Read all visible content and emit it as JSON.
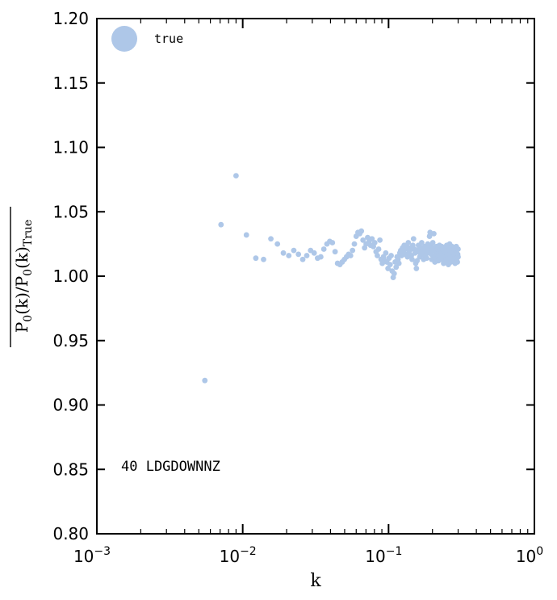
{
  "chart_data": {
    "type": "scatter",
    "x_scale": "log",
    "xlim": [
      0.001,
      1
    ],
    "ylim": [
      0.8,
      1.2
    ],
    "xlabel": "k",
    "ylabel": "P0(k) / P0(k)True",
    "x_ticks": [
      {
        "value": 0.001,
        "base": "10",
        "exp": "−3"
      },
      {
        "value": 0.01,
        "base": "10",
        "exp": "−2"
      },
      {
        "value": 0.1,
        "base": "10",
        "exp": "−1"
      },
      {
        "value": 1,
        "base": "10",
        "exp": "0"
      }
    ],
    "y_ticks": [
      {
        "value": 0.8,
        "label": "0.80"
      },
      {
        "value": 0.85,
        "label": "0.85"
      },
      {
        "value": 0.9,
        "label": "0.90"
      },
      {
        "value": 0.95,
        "label": "0.95"
      },
      {
        "value": 1.0,
        "label": "1.00"
      },
      {
        "value": 1.05,
        "label": "1.05"
      },
      {
        "value": 1.1,
        "label": "1.10"
      },
      {
        "value": 1.15,
        "label": "1.15"
      },
      {
        "value": 1.2,
        "label": "1.20"
      }
    ],
    "legend": {
      "position": "top-left",
      "entries": [
        {
          "label": "true",
          "color": "#aec7e8"
        }
      ]
    },
    "annotation": "40 LDGDOWNNZ",
    "grid": false,
    "series": [
      {
        "name": "true",
        "color": "#aec7e8",
        "points": [
          [
            0.0055,
            0.919
          ],
          [
            0.0071,
            1.04
          ],
          [
            0.009,
            1.078
          ],
          [
            0.0106,
            1.032
          ],
          [
            0.0123,
            1.014
          ],
          [
            0.0139,
            1.013
          ],
          [
            0.0156,
            1.029
          ],
          [
            0.0173,
            1.025
          ],
          [
            0.019,
            1.018
          ],
          [
            0.0207,
            1.016
          ],
          [
            0.0224,
            1.02
          ],
          [
            0.0241,
            1.017
          ],
          [
            0.0258,
            1.013
          ],
          [
            0.0275,
            1.016
          ],
          [
            0.0292,
            1.02
          ],
          [
            0.0309,
            1.018
          ],
          [
            0.0326,
            1.014
          ],
          [
            0.0343,
            1.015
          ],
          [
            0.036,
            1.021
          ],
          [
            0.0378,
            1.025
          ],
          [
            0.0395,
            1.027
          ],
          [
            0.0412,
            1.026
          ],
          [
            0.043,
            1.019
          ],
          [
            0.0447,
            1.01
          ],
          [
            0.0464,
            1.009
          ],
          [
            0.0481,
            1.011
          ],
          [
            0.0498,
            1.013
          ],
          [
            0.0515,
            1.015
          ],
          [
            0.0532,
            1.017
          ],
          [
            0.0549,
            1.016
          ],
          [
            0.0566,
            1.02
          ],
          [
            0.0583,
            1.025
          ],
          [
            0.06,
            1.031
          ],
          [
            0.0617,
            1.034
          ],
          [
            0.0634,
            1.033
          ],
          [
            0.0651,
            1.035
          ],
          [
            0.0668,
            1.028
          ],
          [
            0.0685,
            1.022
          ],
          [
            0.0702,
            1.025
          ],
          [
            0.0719,
            1.03
          ],
          [
            0.0736,
            1.027
          ],
          [
            0.0753,
            1.024
          ],
          [
            0.077,
            1.029
          ],
          [
            0.0787,
            1.023
          ],
          [
            0.0804,
            1.026
          ],
          [
            0.0821,
            1.019
          ],
          [
            0.0838,
            1.016
          ],
          [
            0.0855,
            1.021
          ],
          [
            0.0872,
            1.028
          ],
          [
            0.0889,
            1.013
          ],
          [
            0.0906,
            1.01
          ],
          [
            0.0923,
            1.015
          ],
          [
            0.094,
            1.012
          ],
          [
            0.0957,
            1.018
          ],
          [
            0.0974,
            1.011
          ],
          [
            0.0991,
            1.006
          ],
          [
            0.1008,
            1.014
          ],
          [
            0.1025,
            1.009
          ],
          [
            0.1042,
            1.016
          ],
          [
            0.1059,
            1.004
          ],
          [
            0.1076,
            0.999
          ],
          [
            0.1093,
            1.002
          ],
          [
            0.111,
            1.011
          ],
          [
            0.1127,
            1.007
          ],
          [
            0.1144,
            1.015
          ],
          [
            0.1161,
            1.013
          ],
          [
            0.1178,
            1.01
          ],
          [
            0.1195,
            1.018
          ],
          [
            0.1212,
            1.02
          ],
          [
            0.1229,
            1.016
          ],
          [
            0.1246,
            1.022
          ],
          [
            0.1263,
            1.019
          ],
          [
            0.128,
            1.024
          ],
          [
            0.1297,
            1.017
          ],
          [
            0.1314,
            1.021
          ],
          [
            0.1331,
            1.023
          ],
          [
            0.1348,
            1.015
          ],
          [
            0.1365,
            1.026
          ],
          [
            0.1382,
            1.018
          ],
          [
            0.1399,
            1.02
          ],
          [
            0.1416,
            1.022
          ],
          [
            0.1433,
            1.016
          ],
          [
            0.145,
            1.013
          ],
          [
            0.1467,
            1.024
          ],
          [
            0.1484,
            1.029
          ],
          [
            0.1501,
            1.021
          ],
          [
            0.1518,
            1.018
          ],
          [
            0.1535,
            1.01
          ],
          [
            0.1552,
            1.006
          ],
          [
            0.1569,
            1.012
          ],
          [
            0.1586,
            1.019
          ],
          [
            0.1603,
            1.024
          ],
          [
            0.162,
            1.021
          ],
          [
            0.1637,
            1.015
          ],
          [
            0.1654,
            1.018
          ],
          [
            0.1671,
            1.022
          ],
          [
            0.1688,
            1.026
          ],
          [
            0.1705,
            1.02
          ],
          [
            0.1722,
            1.017
          ],
          [
            0.1739,
            1.013
          ],
          [
            0.1756,
            1.019
          ],
          [
            0.1773,
            1.023
          ],
          [
            0.179,
            1.016
          ],
          [
            0.1807,
            1.021
          ],
          [
            0.1824,
            1.014
          ],
          [
            0.1841,
            1.018
          ],
          [
            0.1858,
            1.025
          ],
          [
            0.1875,
            1.022
          ],
          [
            0.1892,
            1.02
          ],
          [
            0.1909,
            1.031
          ],
          [
            0.1926,
            1.034
          ],
          [
            0.1943,
            1.024
          ],
          [
            0.196,
            1.017
          ],
          [
            0.1977,
            1.013
          ],
          [
            0.1994,
            1.02
          ],
          [
            0.2011,
            1.026
          ],
          [
            0.2028,
            1.022
          ],
          [
            0.2045,
            1.033
          ],
          [
            0.2062,
            1.016
          ],
          [
            0.2079,
            1.011
          ],
          [
            0.2096,
            1.014
          ],
          [
            0.2113,
            1.019
          ],
          [
            0.213,
            1.023
          ],
          [
            0.2147,
            1.017
          ],
          [
            0.2164,
            1.021
          ],
          [
            0.2181,
            1.015
          ],
          [
            0.2198,
            1.012
          ],
          [
            0.2215,
            1.018
          ],
          [
            0.2232,
            1.024
          ],
          [
            0.2249,
            1.02
          ],
          [
            0.2266,
            1.016
          ],
          [
            0.2283,
            1.013
          ],
          [
            0.23,
            1.019
          ],
          [
            0.2317,
            1.023
          ],
          [
            0.2334,
            1.017
          ],
          [
            0.2351,
            1.021
          ],
          [
            0.2368,
            1.014
          ],
          [
            0.2385,
            1.01
          ],
          [
            0.2402,
            1.016
          ],
          [
            0.2419,
            1.022
          ],
          [
            0.2436,
            1.019
          ],
          [
            0.2453,
            1.015
          ],
          [
            0.247,
            1.012
          ],
          [
            0.2487,
            1.018
          ],
          [
            0.2504,
            1.024
          ],
          [
            0.2521,
            1.02
          ],
          [
            0.2538,
            1.016
          ],
          [
            0.2555,
            1.013
          ],
          [
            0.2572,
            1.009
          ],
          [
            0.2589,
            1.017
          ],
          [
            0.2606,
            1.021
          ],
          [
            0.2623,
            1.025
          ],
          [
            0.264,
            1.018
          ],
          [
            0.2657,
            1.014
          ],
          [
            0.2674,
            1.011
          ],
          [
            0.2691,
            1.016
          ],
          [
            0.2708,
            1.02
          ],
          [
            0.2725,
            1.023
          ],
          [
            0.2742,
            1.019
          ],
          [
            0.2759,
            1.015
          ],
          [
            0.2776,
            1.012
          ],
          [
            0.2793,
            1.018
          ],
          [
            0.281,
            1.021
          ],
          [
            0.2827,
            1.017
          ],
          [
            0.2844,
            1.013
          ],
          [
            0.2861,
            1.01
          ],
          [
            0.2878,
            1.016
          ],
          [
            0.2895,
            1.02
          ],
          [
            0.2912,
            1.023
          ],
          [
            0.2929,
            1.018
          ],
          [
            0.2946,
            1.014
          ],
          [
            0.2963,
            1.011
          ],
          [
            0.298,
            1.017
          ],
          [
            0.2997,
            1.021
          ],
          [
            0.3,
            1.015
          ]
        ]
      }
    ]
  }
}
